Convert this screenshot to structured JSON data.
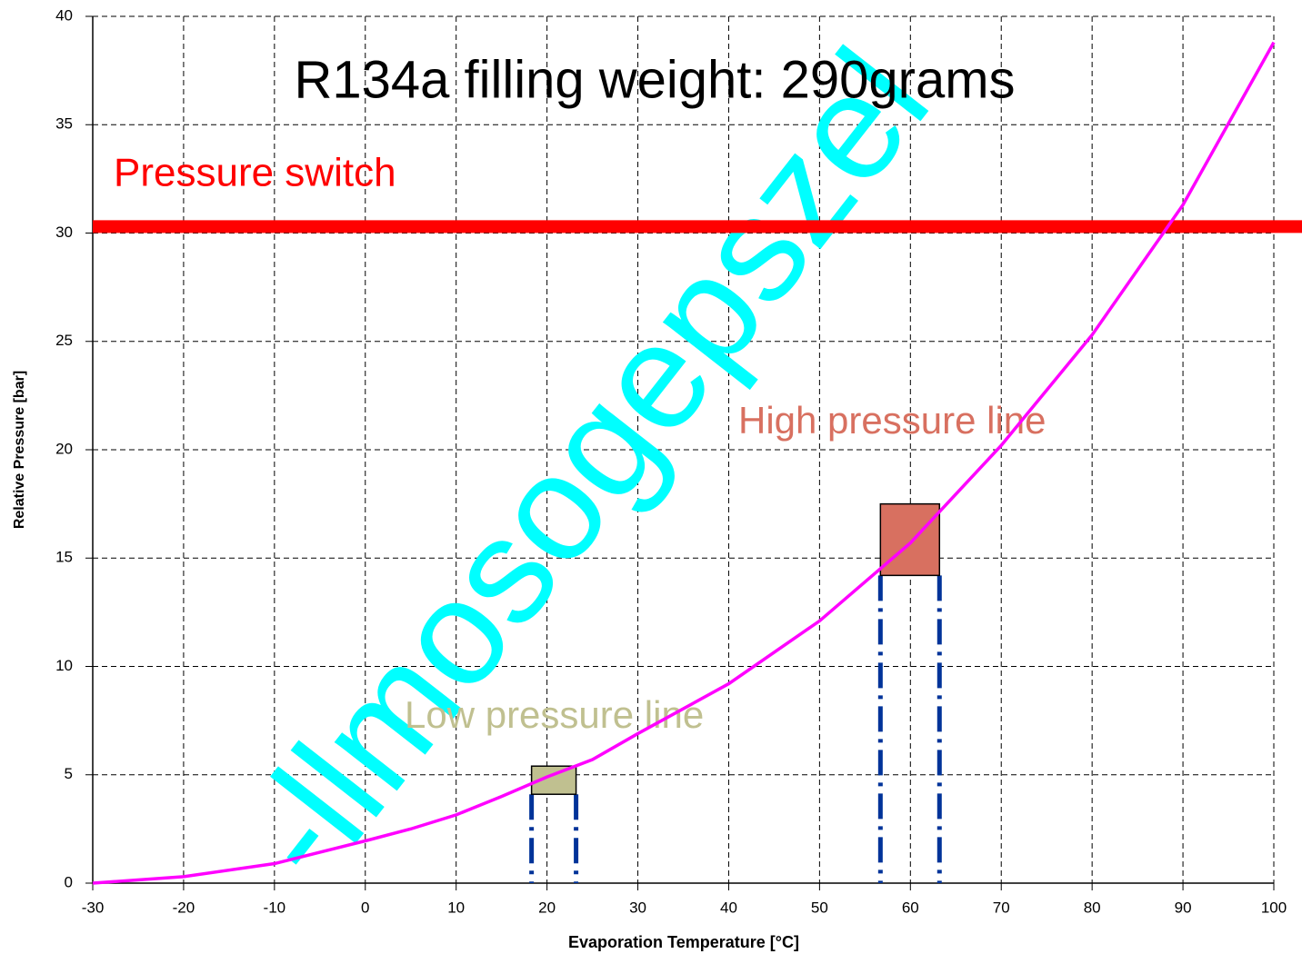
{
  "chart_data": {
    "type": "line",
    "title": "R134a filling weight: 290grams",
    "xlabel": "Evaporation Temperature  [°C]",
    "ylabel": "Relative Pressure [bar]",
    "watermark": "-llmosogepszel",
    "xlim": [
      -30,
      100
    ],
    "ylim": [
      0,
      40
    ],
    "xticks": [
      -30,
      -20,
      -10,
      0,
      10,
      20,
      30,
      40,
      50,
      60,
      70,
      80,
      90,
      100
    ],
    "yticks": [
      0,
      5,
      10,
      15,
      20,
      25,
      30,
      35,
      40
    ],
    "grid": true,
    "x": [
      -30,
      -20,
      -10,
      0,
      5,
      10,
      15,
      20,
      25,
      30,
      40,
      50,
      60,
      70,
      80,
      90,
      100
    ],
    "series": [
      {
        "color": "#ff00ff",
        "values": [
          0,
          0.3,
          0.9,
          1.95,
          2.5,
          3.15,
          4.0,
          4.9,
          5.7,
          6.9,
          9.2,
          12.1,
          15.7,
          20.2,
          25.3,
          31.3,
          38.8
        ]
      }
    ],
    "hlines": [
      {
        "label": "Pressure switch",
        "value": 30.3,
        "color": "#ff0000"
      }
    ],
    "regions": [
      {
        "label": "Low pressure line",
        "xlim": [
          18.3,
          23.2
        ],
        "ylim": [
          4.1,
          5.4
        ],
        "color": "#c0c090"
      },
      {
        "label": "High pressure line",
        "xlim": [
          56.7,
          63.2
        ],
        "ylim": [
          14.2,
          17.5
        ],
        "color": "#d87060"
      }
    ],
    "guide_color": "#003399"
  }
}
